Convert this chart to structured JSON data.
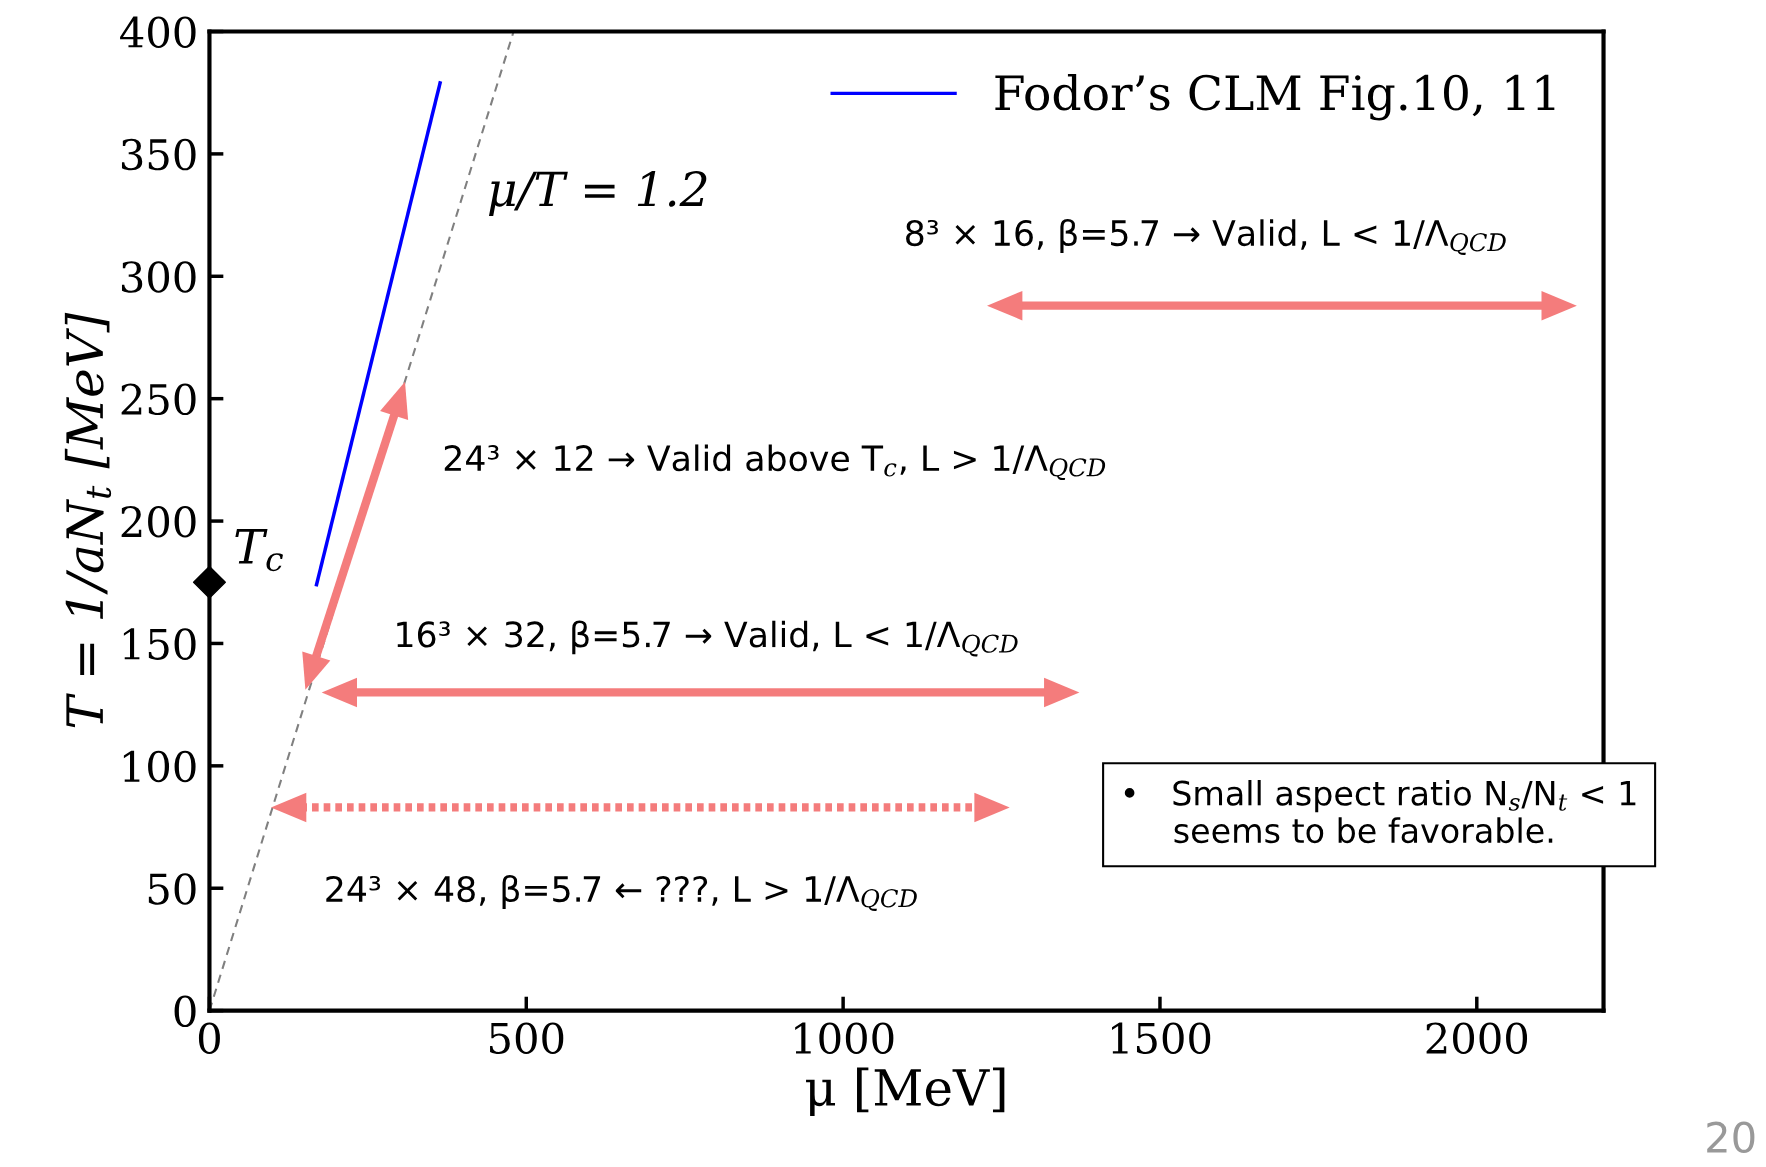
{
  "chart_data": {
    "type": "line",
    "xlabel": "μ [MeV]",
    "ylabel": "T = 1/aN$_{t}$ [MeV]",
    "xlim": [
      0,
      2200
    ],
    "xticks": [
      0,
      500,
      1000,
      1500,
      2000
    ],
    "ylim": [
      0,
      400
    ],
    "yticks": [
      0,
      50,
      100,
      150,
      200,
      250,
      300,
      350,
      400
    ],
    "grid": false,
    "legend": "top right",
    "series": [
      {
        "name": "Fodor’s CLM Fig.10, 11",
        "color": "#0000ff",
        "x": [
          169,
          364
        ],
        "values": [
          174,
          379
        ]
      },
      {
        "color": "#808080",
        "line_style": "dashed",
        "x": [
          0,
          480
        ],
        "values": [
          0,
          400
        ]
      },
      {
        "type": "scatter",
        "color": "#000000",
        "marker": "diamond",
        "x": [
          0
        ],
        "values": [
          175
        ]
      },
      {
        "color": "#f47c7c",
        "marker": "triangle",
        "x": [
          1255,
          2130
        ],
        "values": [
          288,
          288
        ]
      },
      {
        "color": "#f47c7c",
        "marker": "triangle",
        "x": [
          160,
          300
        ],
        "values": [
          138,
          250
        ]
      },
      {
        "color": "#f47c7c",
        "marker": "triangle",
        "x": [
          205,
          1345
        ],
        "values": [
          130,
          130
        ]
      },
      {
        "color": "#f47c7c",
        "marker": "triangle",
        "line_style": "dotted",
        "x": [
          125,
          1235
        ],
        "values": [
          83,
          83
        ]
      }
    ],
    "annotations": [
      "μ/T = 1.2",
      "T$_{c}$",
      "8³ × 16, β=5.7 → Valid, L < 1/Λ$_{QCD}$",
      "24³ × 12 → Valid above T$_{c}$, L > 1/Λ$_{QCD}$",
      "16³ × 32, β=5.7 → Valid, L < 1/Λ$_{QCD}$",
      "24³ × 48, β=5.7 ← ???, L > 1/Λ$_{QCD}$",
      "•   Small aspect ratio N$_{s}$/N$_{t}$ < 1\n     seems to be favorable.",
      "20"
    ]
  }
}
